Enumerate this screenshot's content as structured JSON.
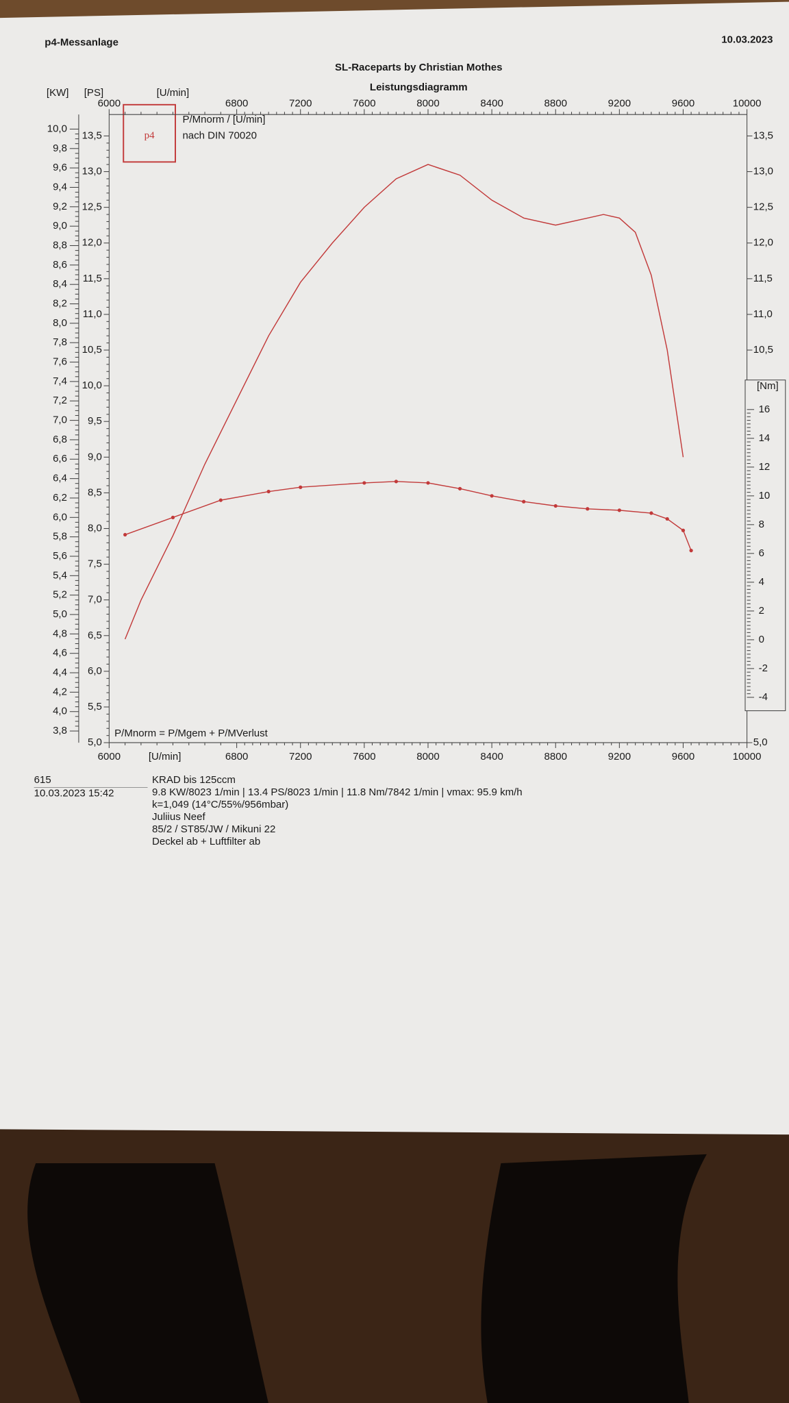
{
  "chart_data": {
    "type": "line",
    "header": "p4-Messanlage",
    "date": "10.03.2023",
    "subtitle": "SL-Raceparts by Christian Mothes",
    "title": "Leistungsdiagramm",
    "logo": {
      "text": "p4",
      "line1": "P/Mnorm / [U/min]",
      "line2": "nach DIN 70020"
    },
    "formula": "P/Mnorm = P/Mgem + P/MVerlust",
    "x_label": "[U/min]",
    "kw_label": "[KW]",
    "ps_label": "[PS]",
    "nm_label": "[Nm]",
    "xlim": [
      6000,
      10000
    ],
    "xticks": [
      6000,
      6800,
      7200,
      7600,
      8000,
      8400,
      8800,
      9200,
      9600,
      10000
    ],
    "ylim": [
      5.0,
      13.8
    ],
    "yticks": [
      {
        "value": 5.0,
        "label": "5,0"
      },
      {
        "value": 5.5,
        "label": "5,5"
      },
      {
        "value": 6.0,
        "label": "6,0"
      },
      {
        "value": 6.5,
        "label": "6,5"
      },
      {
        "value": 7.0,
        "label": "7,0"
      },
      {
        "value": 7.5,
        "label": "7,5"
      },
      {
        "value": 8.0,
        "label": "8,0"
      },
      {
        "value": 8.5,
        "label": "8,5"
      },
      {
        "value": 9.0,
        "label": "9,0"
      },
      {
        "value": 9.5,
        "label": "9,5"
      },
      {
        "value": 10.0,
        "label": "10,0"
      },
      {
        "value": 10.5,
        "label": "10,5"
      },
      {
        "value": 11.0,
        "label": "11,0"
      },
      {
        "value": 11.5,
        "label": "11,5"
      },
      {
        "value": 12.0,
        "label": "12,0"
      },
      {
        "value": 12.5,
        "label": "12,5"
      },
      {
        "value": 13.0,
        "label": "13,0"
      },
      {
        "value": 13.5,
        "label": "13,5"
      }
    ],
    "y_right_ticks": [
      {
        "value": 5.0,
        "label": "5,0"
      },
      {
        "value": 10.5,
        "label": "10,5"
      },
      {
        "value": 11.0,
        "label": "11,0"
      },
      {
        "value": 11.5,
        "label": "11,5"
      },
      {
        "value": 12.0,
        "label": "12,0"
      },
      {
        "value": 12.5,
        "label": "12,5"
      },
      {
        "value": 13.0,
        "label": "13,0"
      },
      {
        "value": 13.5,
        "label": "13,5"
      }
    ],
    "kwlim": [
      3.68,
      10.15
    ],
    "kwticks": [
      {
        "value": 3.8,
        "label": "3,8"
      },
      {
        "value": 4.0,
        "label": "4,0"
      },
      {
        "value": 4.2,
        "label": "4,2"
      },
      {
        "value": 4.4,
        "label": "4,4"
      },
      {
        "value": 4.6,
        "label": "4,6"
      },
      {
        "value": 4.8,
        "label": "4,8"
      },
      {
        "value": 5.0,
        "label": "5,0"
      },
      {
        "value": 5.2,
        "label": "5,2"
      },
      {
        "value": 5.4,
        "label": "5,4"
      },
      {
        "value": 5.6,
        "label": "5,6"
      },
      {
        "value": 5.8,
        "label": "5,8"
      },
      {
        "value": 6.0,
        "label": "6,0"
      },
      {
        "value": 6.2,
        "label": "6,2"
      },
      {
        "value": 6.4,
        "label": "6,4"
      },
      {
        "value": 6.6,
        "label": "6,6"
      },
      {
        "value": 6.8,
        "label": "6,8"
      },
      {
        "value": 7.0,
        "label": "7,0"
      },
      {
        "value": 7.2,
        "label": "7,2"
      },
      {
        "value": 7.4,
        "label": "7,4"
      },
      {
        "value": 7.6,
        "label": "7,6"
      },
      {
        "value": 7.8,
        "label": "7,8"
      },
      {
        "value": 8.0,
        "label": "8,0"
      },
      {
        "value": 8.2,
        "label": "8,2"
      },
      {
        "value": 8.4,
        "label": "8,4"
      },
      {
        "value": 8.6,
        "label": "8,6"
      },
      {
        "value": 8.8,
        "label": "8,8"
      },
      {
        "value": 9.0,
        "label": "9,0"
      },
      {
        "value": 9.2,
        "label": "9,2"
      },
      {
        "value": 9.4,
        "label": "9,4"
      },
      {
        "value": 9.6,
        "label": "9,6"
      },
      {
        "value": 9.8,
        "label": "9,8"
      },
      {
        "value": 10.0,
        "label": "10,0"
      }
    ],
    "y2lim": [
      -7.15,
      36.5
    ],
    "y2ticks": [
      -4,
      -2,
      0,
      2,
      4,
      6,
      8,
      10,
      12,
      14,
      16
    ],
    "series": [
      {
        "color": "#c23a3a",
        "markers": false,
        "x": [
          6100,
          6200,
          6400,
          6600,
          6800,
          7000,
          7200,
          7400,
          7600,
          7800,
          8000,
          8200,
          8400,
          8600,
          8800,
          9000,
          9100,
          9200,
          9300,
          9400,
          9500,
          9600
        ],
        "values": [
          6.45,
          7.0,
          7.9,
          8.9,
          9.8,
          10.7,
          11.45,
          12.0,
          12.5,
          12.9,
          13.1,
          12.95,
          12.6,
          12.35,
          12.25,
          12.35,
          12.4,
          12.35,
          12.15,
          11.55,
          10.5,
          9.0
        ]
      },
      {
        "color": "#c23a3a",
        "markers": true,
        "axis": "y2",
        "x": [
          6100,
          6400,
          6700,
          7000,
          7200,
          7600,
          7800,
          8000,
          8200,
          8400,
          8600,
          8800,
          9000,
          9200,
          9400,
          9500,
          9600,
          9650
        ],
        "values": [
          7.3,
          8.5,
          9.7,
          10.3,
          10.6,
          10.9,
          11.0,
          10.9,
          10.5,
          10.0,
          9.6,
          9.3,
          9.1,
          9.0,
          8.8,
          8.4,
          7.6,
          6.2
        ]
      }
    ],
    "footer": {
      "number": "615",
      "timestamp": "10.03.2023 15:42",
      "lines": [
        "KRAD bis  125ccm",
        "9.8 KW/8023 1/min  |  13.4 PS/8023 1/min  |  11.8 Nm/7842 1/min | vmax: 95.9 km/h",
        "k=1,049 (14°C/55%/956mbar)",
        "Juliius Neef",
        "85/2 / ST85/JW / Mikuni 22",
        "Deckel ab + Luftfilter ab"
      ]
    }
  }
}
